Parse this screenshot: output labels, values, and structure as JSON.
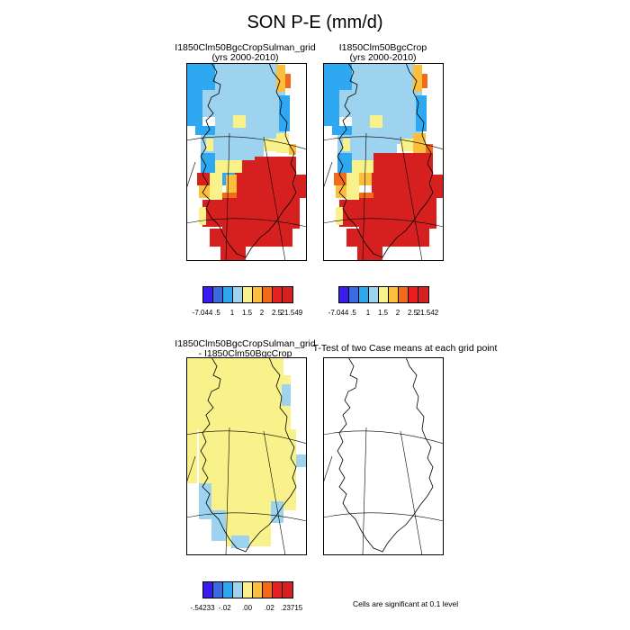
{
  "title": "SON P-E (mm/d)",
  "panels": {
    "top_left": {
      "line1": "I1850Clm50BgcCropSulman_grid",
      "line2": "(yrs 2000-2010)"
    },
    "top_right": {
      "line1": "I1850Clm50BgcCrop",
      "line2": "(yrs 2000-2010)"
    },
    "bottom_left": {
      "line1": "I1850Clm50BgcCropSulman_grid",
      "line2": "- I1850Clm50BgcCrop"
    },
    "bottom_right": {
      "line1": "T-Test of two Case means at each grid point"
    }
  },
  "colorbars": {
    "top_left": {
      "colors": [
        "#3a1cf0",
        "#3b6be0",
        "#2ea8f0",
        "#9dd3ef",
        "#f9f28a",
        "#fbbf3c",
        "#f36a1a",
        "#e81d1d",
        "#d62020"
      ],
      "labels": [
        "-7.044",
        ".5",
        "1",
        "1.5",
        "2",
        "2.5",
        "21.549"
      ]
    },
    "top_right": {
      "colors": [
        "#3a1cf0",
        "#3b6be0",
        "#2ea8f0",
        "#9dd3ef",
        "#f9f28a",
        "#fbbf3c",
        "#f36a1a",
        "#e81d1d",
        "#d62020"
      ],
      "labels": [
        "-7.044",
        ".5",
        "1",
        "1.5",
        "2",
        "2.5",
        "21.542"
      ]
    },
    "bottom_left": {
      "colors": [
        "#3a1cf0",
        "#3b6be0",
        "#2ea8f0",
        "#9dd3ef",
        "#f9f28a",
        "#fbbf3c",
        "#f36a1a",
        "#e81d1d",
        "#d62020"
      ],
      "labels": [
        "-.54233",
        "-.02",
        ".00",
        ".02",
        ".23715"
      ]
    }
  },
  "significance_note": "Cells are significant at 0.1 level",
  "colors": {
    "dark_blue": "#3b6be0",
    "mid_blue": "#2ea8f0",
    "light_blue": "#9dd3ef",
    "yellow": "#f9f28a",
    "orange": "#fbbf3c",
    "dark_orange": "#f36a1a",
    "red": "#d62020"
  }
}
